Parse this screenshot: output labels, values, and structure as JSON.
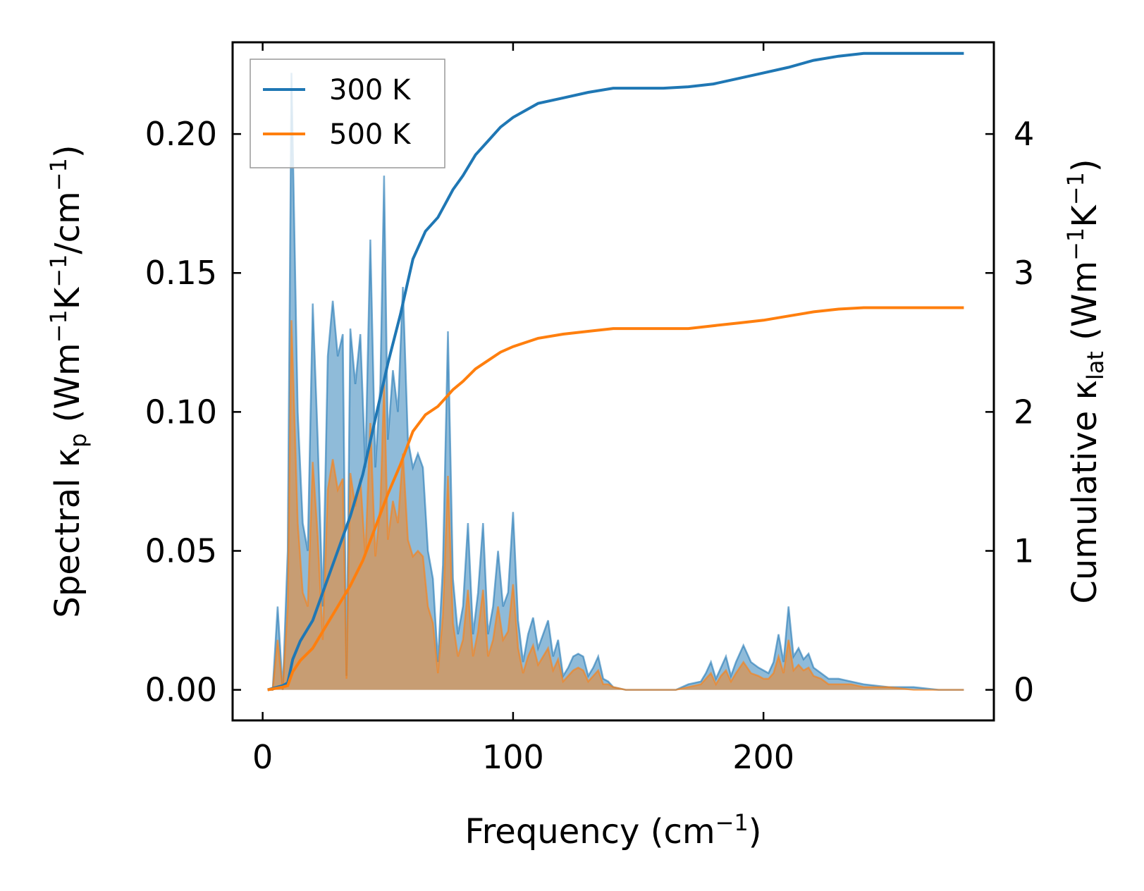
{
  "chart_data": {
    "type": "area",
    "title": "",
    "xlabel": {
      "main": "Frequency (cm",
      "sup": "−1",
      "tail": ")"
    },
    "ylabel_left": {
      "p1": "Spectral κ",
      "sub": "p",
      "p2": " (Wm",
      "sup1": "−1",
      "p3": "K",
      "sup2": "−1",
      "p4": "/cm",
      "sup3": "−1",
      "p5": ")"
    },
    "ylabel_right": {
      "p1": "Cumulative κ",
      "sub": "lat",
      "p2": " (Wm",
      "sup1": "−1",
      "p3": "K",
      "sup2": "−1",
      "p4": ")"
    },
    "xlim": [
      -12,
      292
    ],
    "ylim_left": [
      -0.011,
      0.233
    ],
    "ylim_right": [
      -0.22,
      4.66
    ],
    "x_ticks": [
      0,
      100,
      200
    ],
    "x_tick_labels": [
      "0",
      "100",
      "200"
    ],
    "y_left_ticks": [
      0,
      0.05,
      0.1,
      0.15,
      0.2
    ],
    "y_left_tick_labels": [
      "0.00",
      "0.05",
      "0.10",
      "0.15",
      "0.20"
    ],
    "y_right_ticks": [
      0,
      1,
      2,
      3,
      4
    ],
    "y_right_tick_labels": [
      "0",
      "1",
      "2",
      "3",
      "4"
    ],
    "legend": {
      "placement": "top-left",
      "entries": [
        "300 K",
        "500 K"
      ]
    },
    "series": [
      {
        "name": "300 K",
        "color": "#1f77b4",
        "spectral": [
          [
            2,
            0
          ],
          [
            4,
            0
          ],
          [
            6,
            0.03
          ],
          [
            8,
            0
          ],
          [
            10,
            0.05
          ],
          [
            11.5,
            0.222
          ],
          [
            14,
            0.1
          ],
          [
            16,
            0.06
          ],
          [
            18,
            0.05
          ],
          [
            20,
            0.139
          ],
          [
            22,
            0.09
          ],
          [
            24,
            0.03
          ],
          [
            26,
            0.12
          ],
          [
            28,
            0.14
          ],
          [
            30,
            0.12
          ],
          [
            32,
            0.128
          ],
          [
            33.5,
            0.005
          ],
          [
            35,
            0.13
          ],
          [
            37,
            0.11
          ],
          [
            39,
            0.128
          ],
          [
            41,
            0.08
          ],
          [
            43,
            0.162
          ],
          [
            45,
            0.08
          ],
          [
            47,
            0.11
          ],
          [
            48.5,
            0.185
          ],
          [
            50,
            0.09
          ],
          [
            52,
            0.115
          ],
          [
            54,
            0.1
          ],
          [
            56,
            0.145
          ],
          [
            58,
            0.09
          ],
          [
            60,
            0.08
          ],
          [
            62,
            0.085
          ],
          [
            64,
            0.08
          ],
          [
            66,
            0.05
          ],
          [
            68,
            0.04
          ],
          [
            70,
            0.01
          ],
          [
            72,
            0.045
          ],
          [
            74,
            0.129
          ],
          [
            76,
            0.04
          ],
          [
            78,
            0.02
          ],
          [
            80,
            0.03
          ],
          [
            82,
            0.06
          ],
          [
            84,
            0.02
          ],
          [
            86,
            0.035
          ],
          [
            88,
            0.06
          ],
          [
            90,
            0.02
          ],
          [
            92,
            0.03
          ],
          [
            94,
            0.05
          ],
          [
            96,
            0.03
          ],
          [
            98,
            0.035
          ],
          [
            100,
            0.064
          ],
          [
            102,
            0.025
          ],
          [
            104,
            0.01
          ],
          [
            106,
            0.02
          ],
          [
            108,
            0.026
          ],
          [
            110,
            0.015
          ],
          [
            112,
            0.02
          ],
          [
            114,
            0.025
          ],
          [
            116,
            0.012
          ],
          [
            118,
            0.018
          ],
          [
            120,
            0.005
          ],
          [
            122,
            0.008
          ],
          [
            124,
            0.012
          ],
          [
            126,
            0.013
          ],
          [
            128,
            0.012
          ],
          [
            130,
            0.005
          ],
          [
            132,
            0.008
          ],
          [
            134,
            0.012
          ],
          [
            136,
            0.004
          ],
          [
            138,
            0.003
          ],
          [
            140,
            0.001
          ],
          [
            145,
            0
          ],
          [
            165,
            0
          ],
          [
            170,
            0.002
          ],
          [
            175,
            0.003
          ],
          [
            177,
            0.006
          ],
          [
            179,
            0.01
          ],
          [
            181,
            0.004
          ],
          [
            183,
            0.008
          ],
          [
            185,
            0.012
          ],
          [
            187,
            0.005
          ],
          [
            189,
            0.01
          ],
          [
            192,
            0.016
          ],
          [
            195,
            0.01
          ],
          [
            198,
            0.008
          ],
          [
            200,
            0.007
          ],
          [
            202,
            0.006
          ],
          [
            204,
            0.01
          ],
          [
            206,
            0.02
          ],
          [
            208,
            0.01
          ],
          [
            210,
            0.03
          ],
          [
            212,
            0.012
          ],
          [
            214,
            0.015
          ],
          [
            216,
            0.011
          ],
          [
            218,
            0.013
          ],
          [
            220,
            0.008
          ],
          [
            223,
            0.006
          ],
          [
            226,
            0.004
          ],
          [
            230,
            0.004
          ],
          [
            235,
            0.003
          ],
          [
            240,
            0.002
          ],
          [
            250,
            0.001
          ],
          [
            260,
            0.001
          ],
          [
            270,
            0
          ],
          [
            280,
            0
          ]
        ],
        "cumulative": [
          [
            2,
            0
          ],
          [
            8,
            0.03
          ],
          [
            10,
            0.05
          ],
          [
            12,
            0.22
          ],
          [
            15,
            0.35
          ],
          [
            20,
            0.5
          ],
          [
            25,
            0.75
          ],
          [
            30,
            1.0
          ],
          [
            35,
            1.25
          ],
          [
            40,
            1.55
          ],
          [
            45,
            1.95
          ],
          [
            50,
            2.35
          ],
          [
            55,
            2.7
          ],
          [
            60,
            3.1
          ],
          [
            65,
            3.3
          ],
          [
            70,
            3.4
          ],
          [
            73,
            3.5
          ],
          [
            76,
            3.6
          ],
          [
            80,
            3.7
          ],
          [
            85,
            3.85
          ],
          [
            90,
            3.95
          ],
          [
            95,
            4.05
          ],
          [
            100,
            4.12
          ],
          [
            110,
            4.22
          ],
          [
            120,
            4.26
          ],
          [
            130,
            4.3
          ],
          [
            140,
            4.33
          ],
          [
            160,
            4.33
          ],
          [
            170,
            4.34
          ],
          [
            180,
            4.36
          ],
          [
            190,
            4.4
          ],
          [
            200,
            4.44
          ],
          [
            210,
            4.48
          ],
          [
            220,
            4.53
          ],
          [
            230,
            4.56
          ],
          [
            240,
            4.58
          ],
          [
            260,
            4.58
          ],
          [
            280,
            4.58
          ]
        ]
      },
      {
        "name": "500 K",
        "color": "#ff7f0e",
        "spectral": [
          [
            2,
            0
          ],
          [
            4,
            0
          ],
          [
            6,
            0.018
          ],
          [
            8,
            0
          ],
          [
            10,
            0.03
          ],
          [
            11.5,
            0.133
          ],
          [
            14,
            0.06
          ],
          [
            16,
            0.035
          ],
          [
            18,
            0.03
          ],
          [
            20,
            0.082
          ],
          [
            22,
            0.055
          ],
          [
            24,
            0.018
          ],
          [
            26,
            0.072
          ],
          [
            28,
            0.083
          ],
          [
            30,
            0.072
          ],
          [
            32,
            0.076
          ],
          [
            33.5,
            0.004
          ],
          [
            35,
            0.078
          ],
          [
            37,
            0.066
          ],
          [
            39,
            0.076
          ],
          [
            41,
            0.048
          ],
          [
            43,
            0.096
          ],
          [
            45,
            0.048
          ],
          [
            47,
            0.066
          ],
          [
            48.5,
            0.11
          ],
          [
            50,
            0.054
          ],
          [
            52,
            0.068
          ],
          [
            54,
            0.06
          ],
          [
            56,
            0.085
          ],
          [
            58,
            0.054
          ],
          [
            60,
            0.048
          ],
          [
            62,
            0.05
          ],
          [
            64,
            0.048
          ],
          [
            66,
            0.03
          ],
          [
            68,
            0.024
          ],
          [
            70,
            0.006
          ],
          [
            72,
            0.027
          ],
          [
            74,
            0.077
          ],
          [
            76,
            0.024
          ],
          [
            78,
            0.012
          ],
          [
            80,
            0.018
          ],
          [
            82,
            0.036
          ],
          [
            84,
            0.012
          ],
          [
            86,
            0.021
          ],
          [
            88,
            0.036
          ],
          [
            90,
            0.012
          ],
          [
            92,
            0.018
          ],
          [
            94,
            0.03
          ],
          [
            96,
            0.018
          ],
          [
            98,
            0.021
          ],
          [
            100,
            0.038
          ],
          [
            102,
            0.015
          ],
          [
            104,
            0.006
          ],
          [
            106,
            0.012
          ],
          [
            108,
            0.016
          ],
          [
            110,
            0.009
          ],
          [
            112,
            0.012
          ],
          [
            114,
            0.015
          ],
          [
            116,
            0.007
          ],
          [
            118,
            0.011
          ],
          [
            120,
            0.003
          ],
          [
            122,
            0.005
          ],
          [
            124,
            0.007
          ],
          [
            126,
            0.008
          ],
          [
            128,
            0.007
          ],
          [
            130,
            0.003
          ],
          [
            132,
            0.005
          ],
          [
            134,
            0.007
          ],
          [
            136,
            0.002
          ],
          [
            138,
            0.002
          ],
          [
            140,
            0.001
          ],
          [
            145,
            0
          ],
          [
            165,
            0
          ],
          [
            170,
            0.001
          ],
          [
            175,
            0.002
          ],
          [
            177,
            0.004
          ],
          [
            179,
            0.006
          ],
          [
            181,
            0.002
          ],
          [
            183,
            0.005
          ],
          [
            185,
            0.007
          ],
          [
            187,
            0.003
          ],
          [
            189,
            0.006
          ],
          [
            192,
            0.01
          ],
          [
            195,
            0.006
          ],
          [
            198,
            0.005
          ],
          [
            200,
            0.004
          ],
          [
            202,
            0.004
          ],
          [
            204,
            0.006
          ],
          [
            206,
            0.012
          ],
          [
            208,
            0.006
          ],
          [
            210,
            0.018
          ],
          [
            212,
            0.007
          ],
          [
            214,
            0.009
          ],
          [
            216,
            0.007
          ],
          [
            218,
            0.008
          ],
          [
            220,
            0.005
          ],
          [
            223,
            0.004
          ],
          [
            226,
            0.002
          ],
          [
            230,
            0.002
          ],
          [
            235,
            0.002
          ],
          [
            240,
            0.001
          ],
          [
            250,
            0.001
          ],
          [
            260,
            0
          ],
          [
            270,
            0
          ],
          [
            280,
            0
          ]
        ],
        "cumulative": [
          [
            2,
            0
          ],
          [
            8,
            0.02
          ],
          [
            10,
            0.03
          ],
          [
            12,
            0.13
          ],
          [
            15,
            0.21
          ],
          [
            20,
            0.3
          ],
          [
            25,
            0.45
          ],
          [
            30,
            0.6
          ],
          [
            35,
            0.75
          ],
          [
            40,
            0.93
          ],
          [
            45,
            1.17
          ],
          [
            50,
            1.41
          ],
          [
            55,
            1.62
          ],
          [
            60,
            1.86
          ],
          [
            65,
            1.98
          ],
          [
            70,
            2.04
          ],
          [
            73,
            2.1
          ],
          [
            76,
            2.16
          ],
          [
            80,
            2.22
          ],
          [
            85,
            2.31
          ],
          [
            90,
            2.37
          ],
          [
            95,
            2.43
          ],
          [
            100,
            2.47
          ],
          [
            110,
            2.53
          ],
          [
            120,
            2.56
          ],
          [
            130,
            2.58
          ],
          [
            140,
            2.6
          ],
          [
            160,
            2.6
          ],
          [
            170,
            2.6
          ],
          [
            180,
            2.62
          ],
          [
            190,
            2.64
          ],
          [
            200,
            2.66
          ],
          [
            210,
            2.69
          ],
          [
            220,
            2.72
          ],
          [
            230,
            2.74
          ],
          [
            240,
            2.75
          ],
          [
            260,
            2.75
          ],
          [
            280,
            2.75
          ]
        ]
      }
    ]
  }
}
